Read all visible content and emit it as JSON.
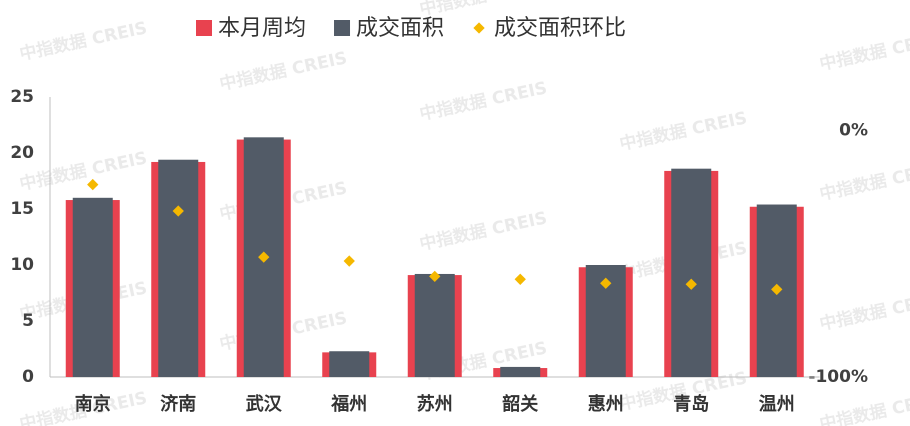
{
  "chart_data": {
    "type": "bar-line",
    "watermark": "中指数据 CREIS",
    "categories": [
      "南京",
      "济南",
      "武汉",
      "福州",
      "苏州",
      "韶关",
      "惠州",
      "青岛",
      "温州"
    ],
    "series": [
      {
        "name": "本月周均",
        "color": "#e8424f",
        "values": [
          15.8,
          19.2,
          21.2,
          2.2,
          9.1,
          0.8,
          9.8,
          18.4,
          15.2
        ]
      },
      {
        "name": "成交面积",
        "color": "#525b67",
        "values": [
          16.0,
          19.4,
          21.4,
          2.3,
          9.2,
          0.9,
          10.0,
          18.6,
          15.4
        ]
      },
      {
        "name": "成交面积环比",
        "color": "#f5b800",
        "axis": "y2",
        "values": [
          -22,
          -32.7,
          -51.4,
          -53,
          -59.2,
          -60.4,
          -62,
          -62.4,
          -64.5
        ]
      }
    ],
    "ylim": [
      0,
      25
    ],
    "yticks": [
      0,
      5,
      10,
      15,
      20,
      25
    ],
    "y2lim": [
      -100,
      13.5
    ],
    "y2ticks": [
      {
        "value": -100,
        "label": "-100%"
      },
      {
        "value": 0,
        "label": "0%"
      }
    ]
  }
}
